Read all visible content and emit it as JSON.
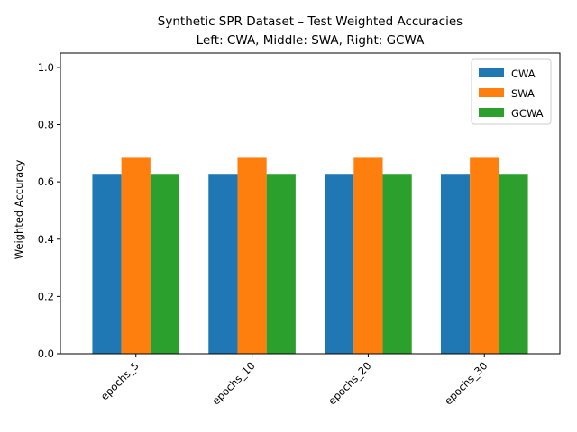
{
  "chart_data": {
    "type": "bar",
    "title": "Synthetic SPR Dataset – Test Weighted Accuracies",
    "subtitle": "Left: CWA, Middle: SWA, Right: GCWA",
    "xlabel": "",
    "ylabel": "Weighted Accuracy",
    "ylim": [
      0,
      1.05
    ],
    "yticks": [
      "0.0",
      "0.2",
      "0.4",
      "0.6",
      "0.8",
      "1.0"
    ],
    "categories": [
      "epochs_5",
      "epochs_10",
      "epochs_20",
      "epochs_30"
    ],
    "series": [
      {
        "name": "CWA",
        "color": "#1f77b4",
        "values": [
          0.628,
          0.628,
          0.628,
          0.628
        ]
      },
      {
        "name": "SWA",
        "color": "#ff7f0e",
        "values": [
          0.684,
          0.684,
          0.684,
          0.684
        ]
      },
      {
        "name": "GCWA",
        "color": "#2ca02c",
        "values": [
          0.628,
          0.628,
          0.628,
          0.628
        ]
      }
    ],
    "legend": "top-right",
    "grid": false
  }
}
